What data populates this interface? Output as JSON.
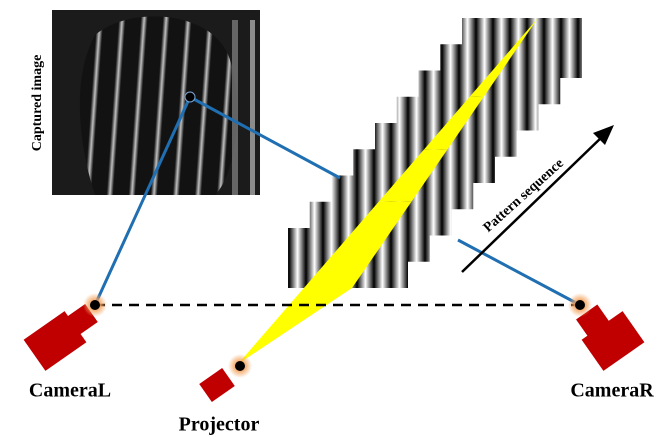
{
  "labels": {
    "captured_image": "Captured image",
    "pattern_sequence": "Pattern sequence",
    "camera_left": "CameraL",
    "projector": "Projector",
    "camera_right": "CameraR"
  }
}
